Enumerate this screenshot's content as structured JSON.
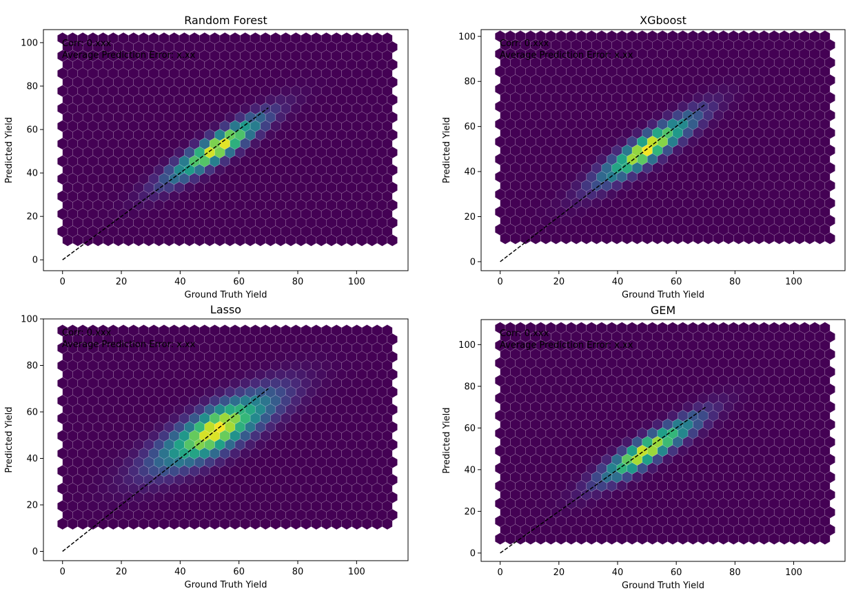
{
  "figure": {
    "background": "#ffffff"
  },
  "colormap": [
    "#440154",
    "#482878",
    "#3e4989",
    "#31688e",
    "#26828e",
    "#1f9e89",
    "#35b779",
    "#6ece58",
    "#b5de2b",
    "#fde725"
  ],
  "chart_data": [
    {
      "type": "hexbin",
      "title": "Random Forest",
      "xlabel": "Ground Truth Yield",
      "ylabel": "Predicted Yield",
      "xlim": [
        -6.5,
        117.5
      ],
      "ylim": [
        -5,
        106
      ],
      "xticks": [
        0,
        20,
        40,
        60,
        80,
        100
      ],
      "yticks": [
        0,
        20,
        40,
        60,
        80,
        100
      ],
      "grid_extent": {
        "x": [
          0,
          113
        ],
        "y": [
          5,
          102
        ]
      },
      "density": {
        "center": [
          52,
          51
        ],
        "slope": 0.9,
        "spread_along": 15,
        "spread_across": 3.2,
        "peak_x": 55
      },
      "reference_line": {
        "from": [
          0,
          0
        ],
        "to": [
          70,
          70
        ],
        "style": "dashed",
        "color": "#000000"
      },
      "annotation": [
        "Corr: 0.xxx",
        "Average Prediction Error: x.xx"
      ]
    },
    {
      "type": "hexbin",
      "title": "XGboost",
      "xlabel": "Ground Truth Yield",
      "ylabel": "Predicted Yield",
      "xlim": [
        -6.5,
        117.5
      ],
      "ylim": [
        -4,
        103
      ],
      "xticks": [
        0,
        20,
        40,
        60,
        80,
        100
      ],
      "yticks": [
        0,
        20,
        40,
        60,
        80,
        100
      ],
      "grid_extent": {
        "x": [
          0,
          113
        ],
        "y": [
          9,
          100
        ]
      },
      "density": {
        "center": [
          50,
          50
        ],
        "slope": 0.9,
        "spread_along": 15,
        "spread_across": 3.3,
        "peak_x": 50
      },
      "reference_line": {
        "from": [
          0,
          0
        ],
        "to": [
          70,
          70
        ],
        "style": "dashed",
        "color": "#000000"
      },
      "annotation": [
        "Corr: 0.xxx",
        "Average Prediction Error: x.xx"
      ]
    },
    {
      "type": "hexbin",
      "title": "Lasso",
      "xlabel": "Ground Truth Yield",
      "ylabel": "Predicted Yield",
      "xlim": [
        -6.5,
        117.5
      ],
      "ylim": [
        -4,
        100
      ],
      "xticks": [
        0,
        20,
        40,
        60,
        80,
        100
      ],
      "yticks": [
        0,
        20,
        40,
        60,
        80,
        100
      ],
      "grid_extent": {
        "x": [
          0,
          113
        ],
        "y": [
          9,
          95
        ]
      },
      "density": {
        "center": [
          52,
          52
        ],
        "slope": 0.75,
        "spread_along": 17,
        "spread_across": 5.5,
        "peak_x": 52
      },
      "reference_line": {
        "from": [
          0,
          0
        ],
        "to": [
          70,
          70
        ],
        "style": "dashed",
        "color": "#000000"
      },
      "annotation": [
        "Corr: 0.xxx",
        "Average Prediction Error: x.xx"
      ]
    },
    {
      "type": "hexbin",
      "title": "GEM",
      "xlabel": "Ground Truth Yield",
      "ylabel": "Predicted Yield",
      "xlim": [
        -6.5,
        117.5
      ],
      "ylim": [
        -4,
        112
      ],
      "xticks": [
        0,
        20,
        40,
        60,
        80,
        100
      ],
      "yticks": [
        0,
        20,
        40,
        60,
        80,
        100
      ],
      "grid_extent": {
        "x": [
          0,
          113
        ],
        "y": [
          3,
          108
        ]
      },
      "density": {
        "center": [
          51,
          50
        ],
        "slope": 0.92,
        "spread_along": 15,
        "spread_across": 3.3,
        "peak_x": 45
      },
      "reference_line": {
        "from": [
          0,
          0
        ],
        "to": [
          70,
          70
        ],
        "style": "dashed",
        "color": "#000000"
      },
      "annotation": [
        "Corr: 0.xxx",
        "Average Prediction Error: x.xx"
      ]
    }
  ]
}
